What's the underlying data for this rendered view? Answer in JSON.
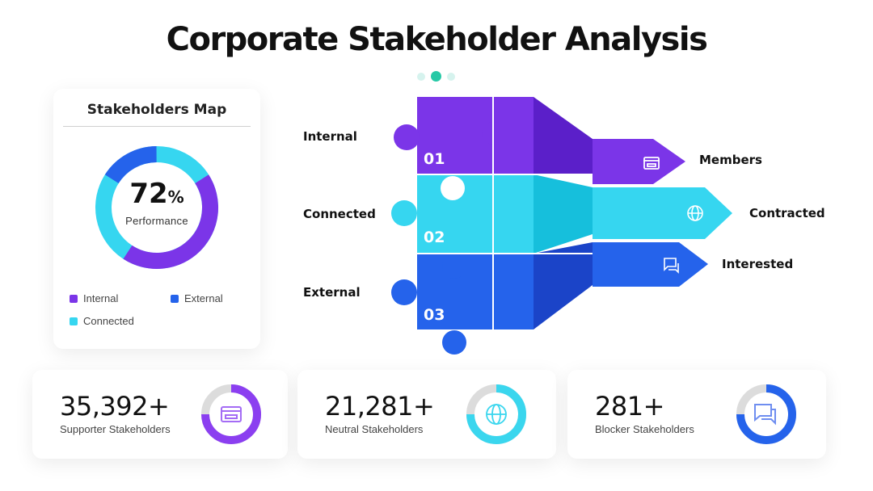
{
  "title": "Corporate Stakeholder Analysis",
  "pagination": {
    "total": 3,
    "active": 1
  },
  "map": {
    "title": "Stakeholders Map",
    "value": "72",
    "unit": "%",
    "caption": "Performance",
    "donut_fraction": 0.72,
    "legend": [
      {
        "label": "Internal",
        "color": "#7b35e8"
      },
      {
        "label": "External",
        "color": "#2563eb"
      },
      {
        "label": "Connected",
        "color": "#36d6f0"
      }
    ]
  },
  "puzzle": {
    "rows": [
      {
        "number": "01",
        "left_label": "Internal",
        "right_label": "Members",
        "icon": "store-icon",
        "color": "#7b35e8"
      },
      {
        "number": "02",
        "left_label": "Connected",
        "right_label": "Contracted",
        "icon": "globe-icon",
        "color": "#36d6f0"
      },
      {
        "number": "03",
        "left_label": "External",
        "right_label": "Interested",
        "icon": "chat-icon",
        "color": "#2563eb"
      }
    ]
  },
  "stats": [
    {
      "value": "35,392+",
      "label": "Supporter Stakeholders",
      "icon": "store-icon",
      "color": "#8b3ff0"
    },
    {
      "value": "21,281+",
      "label": "Neutral Stakeholders",
      "icon": "globe-icon",
      "color": "#3ad6ee"
    },
    {
      "value": "281+",
      "label": "Blocker Stakeholders",
      "icon": "chat-icon",
      "color": "#2563eb"
    }
  ]
}
